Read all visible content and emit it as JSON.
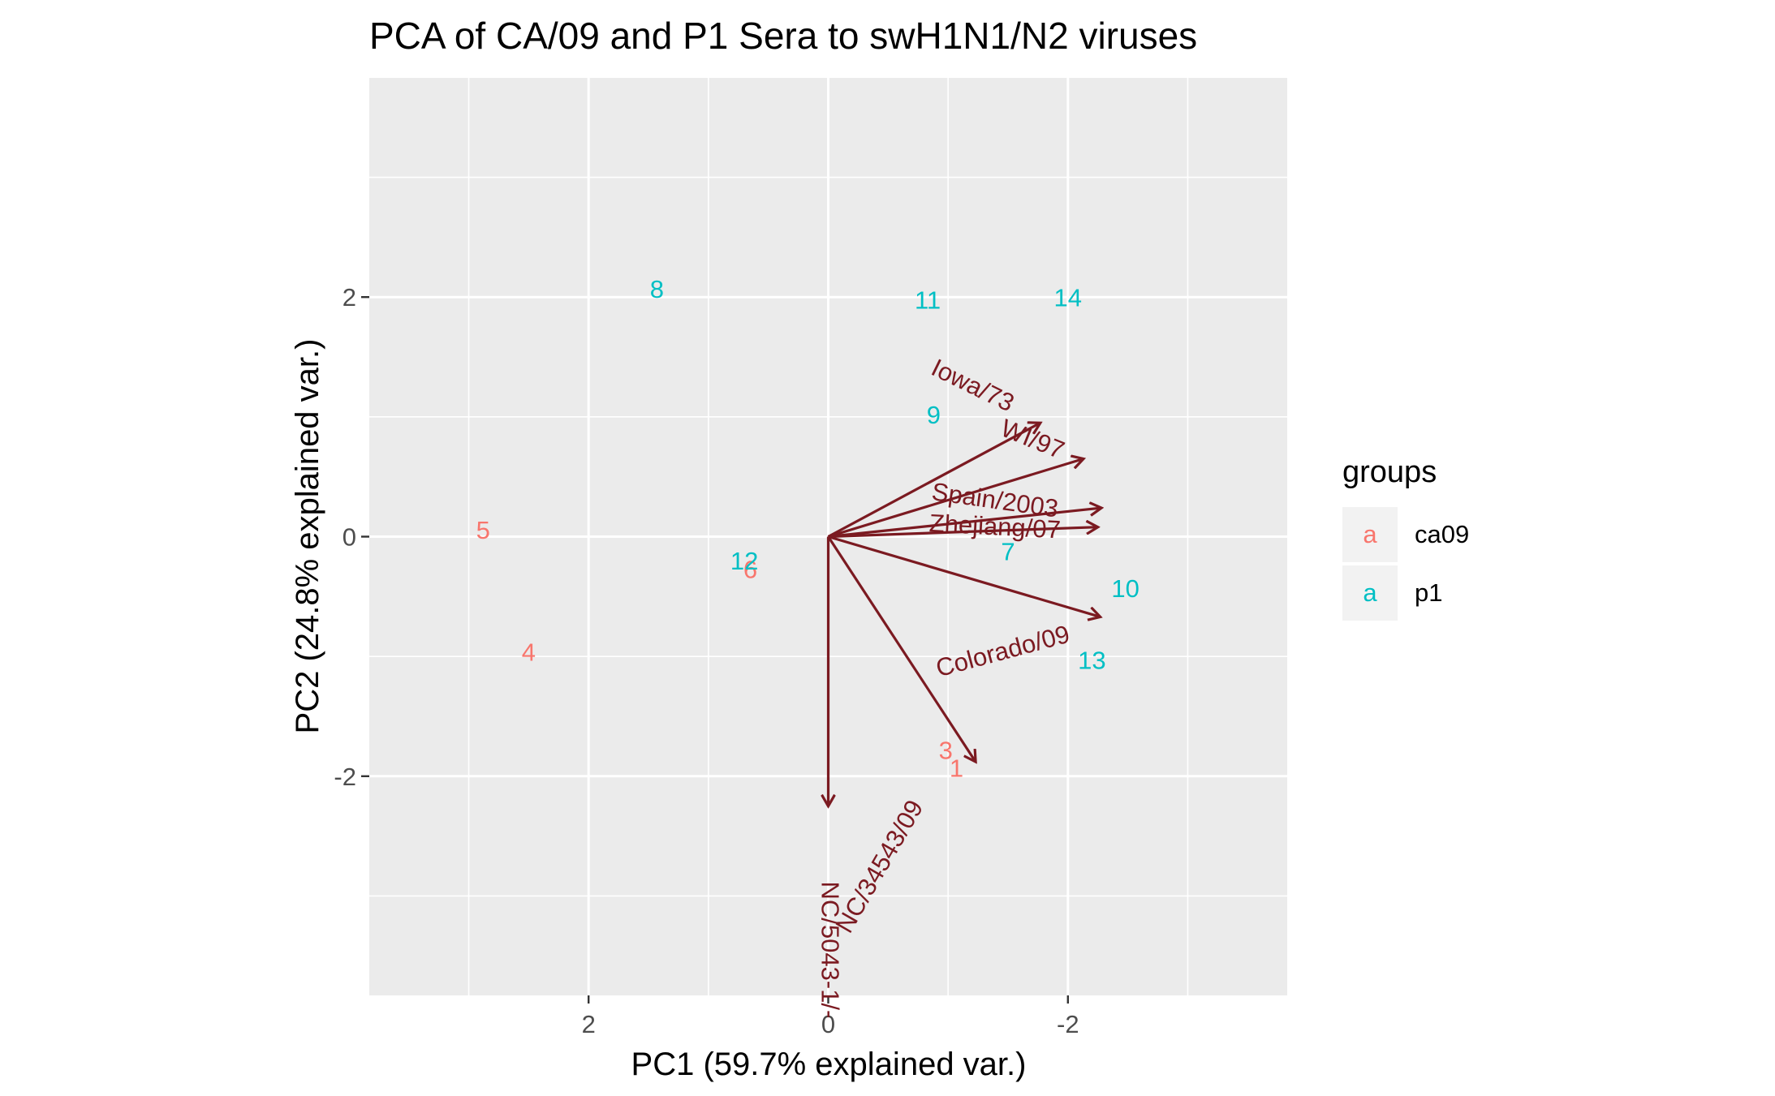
{
  "chart_data": {
    "type": "scatter",
    "title": "PCA of CA/09 and P1 Sera to swH1N1/N2 viruses",
    "xlabel": "PC1 (59.7% explained var.)",
    "ylabel": "PC2 (24.8% explained var.)",
    "x_reversed": true,
    "xlim": [
      3.83,
      -3.83
    ],
    "ylim": [
      -3.83,
      3.83
    ],
    "x_ticks": [
      2,
      0,
      -2
    ],
    "x_tick_labels": [
      "2",
      "0",
      "-2"
    ],
    "y_ticks": [
      -2,
      0,
      2
    ],
    "y_tick_labels": [
      "-2",
      "0",
      "2"
    ],
    "grid": true,
    "series": [
      {
        "name": "ca09",
        "color": "#F8766D",
        "points": [
          {
            "label": "1",
            "x": -1.07,
            "y": -1.95
          },
          {
            "label": "3",
            "x": -0.98,
            "y": -1.8
          },
          {
            "label": "4",
            "x": 2.5,
            "y": -0.98
          },
          {
            "label": "5",
            "x": 2.88,
            "y": 0.04
          },
          {
            "label": "6",
            "x": 0.65,
            "y": -0.29
          }
        ]
      },
      {
        "name": "p1",
        "color": "#00BFC4",
        "points": [
          {
            "label": "7",
            "x": -1.5,
            "y": -0.14
          },
          {
            "label": "8",
            "x": 1.43,
            "y": 2.05
          },
          {
            "label": "9",
            "x": -0.88,
            "y": 1.0
          },
          {
            "label": "10",
            "x": -2.48,
            "y": -0.45
          },
          {
            "label": "11",
            "x": -0.83,
            "y": 1.96
          },
          {
            "label": "12",
            "x": 0.7,
            "y": -0.22
          },
          {
            "label": "13",
            "x": -2.2,
            "y": -1.05
          },
          {
            "label": "14",
            "x": -2.0,
            "y": 1.98
          }
        ]
      }
    ],
    "loadings": [
      {
        "label": "Iowa/73",
        "x": -1.77,
        "y": 0.95,
        "label_x": -1.2,
        "label_y": 1.25,
        "label_angle": 26
      },
      {
        "label": "WI/97",
        "x": -2.13,
        "y": 0.65,
        "label_x": -1.7,
        "label_y": 0.8,
        "label_angle": 22
      },
      {
        "label": "Spain/2003",
        "x": -2.28,
        "y": 0.24,
        "label_x": -1.39,
        "label_y": 0.29,
        "label_angle": 8
      },
      {
        "label": "Zhejiang/07",
        "x": -2.25,
        "y": 0.08,
        "label_x": -1.39,
        "label_y": 0.07,
        "label_angle": 3
      },
      {
        "label": "Colorado/09",
        "x": -2.27,
        "y": -0.67,
        "label_x": -1.46,
        "label_y": -0.97,
        "label_angle": -15
      },
      {
        "label": "NC/34543/09",
        "x": -1.23,
        "y": -1.88,
        "label_x": -0.44,
        "label_y": -2.76,
        "label_angle": -60
      },
      {
        "label": "NC/5043-1/-",
        "x": 0.0,
        "y": -2.25,
        "label_x": 0.0,
        "label_y": -3.45,
        "label_angle": 90
      }
    ],
    "loading_color": "#7B1A21",
    "legend": {
      "title": "groups",
      "position": "right",
      "key_glyph": "a",
      "entries": [
        {
          "name": "ca09",
          "color": "#F8766D"
        },
        {
          "name": "p1",
          "color": "#00BFC4"
        }
      ]
    }
  }
}
